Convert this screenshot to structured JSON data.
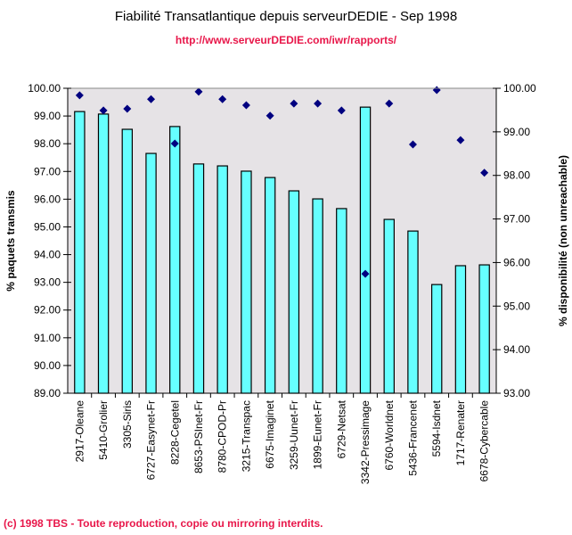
{
  "header": {
    "title": "Fiabilité Transatlantique depuis serveurDEDIE - Sep 1998",
    "url": "http://www.serveurDEDIE.com/iwr/rapports/"
  },
  "footer": {
    "copyright": "(c) 1998 TBS - Toute reproduction, copie ou mirroring interdits."
  },
  "colors": {
    "plot_bg": "#e6e3e6",
    "bar_fill": "#66ffff",
    "bar_stroke": "#000000",
    "marker": "#000080",
    "accent_text": "#e8174a"
  },
  "chart_data": {
    "type": "bar",
    "title": "Fiabilité Transatlantique depuis serveurDEDIE - Sep 1998",
    "subtitle": "http://www.serveurDEDIE.com/iwr/rapports/",
    "xlabel": "",
    "ylabel": "% paquets transmis",
    "y2label": "% disponibilité (non unreachable)",
    "ylim": [
      89,
      100
    ],
    "y2lim": [
      93,
      100
    ],
    "yticks": [
      "89.00",
      "90.00",
      "91.00",
      "92.00",
      "93.00",
      "94.00",
      "95.00",
      "96.00",
      "97.00",
      "98.00",
      "99.00",
      "100.00"
    ],
    "y2ticks": [
      "93.00",
      "94.00",
      "95.00",
      "96.00",
      "97.00",
      "98.00",
      "99.00",
      "100.00"
    ],
    "grid": false,
    "legend": "none",
    "categories": [
      "2917-Oleane",
      "5410-Grolier",
      "3305-Siris",
      "6727-Easynet-Fr",
      "8228-Cegetel",
      "8653-PSInet-Fr",
      "8780-CPOD-Pr",
      "3215-Transpac",
      "6675-Imaginet",
      "3259-Uunet-Fr",
      "1899-Eunet-Fr",
      "6729-Netsat",
      "3342-Pressimage",
      "6760-Worldnet",
      "5436-Francenet",
      "5594-Isdnet",
      "1717-Renater",
      "6678-Cybercable"
    ],
    "series": [
      {
        "name": "% paquets transmis",
        "type": "bar",
        "axis": "left",
        "values": [
          99.16,
          99.07,
          98.52,
          97.65,
          98.62,
          97.27,
          97.2,
          97.01,
          96.78,
          96.3,
          96.01,
          95.66,
          99.32,
          95.27,
          94.85,
          92.92,
          93.6,
          93.63
        ]
      },
      {
        "name": "% disponibilité (non unreachable)",
        "type": "scatter",
        "marker": "diamond",
        "axis": "right",
        "values": [
          99.84,
          99.49,
          99.53,
          99.75,
          98.73,
          99.92,
          99.75,
          99.61,
          99.37,
          99.65,
          99.65,
          99.49,
          95.74,
          99.65,
          98.71,
          99.96,
          98.81,
          98.06
        ]
      }
    ]
  }
}
